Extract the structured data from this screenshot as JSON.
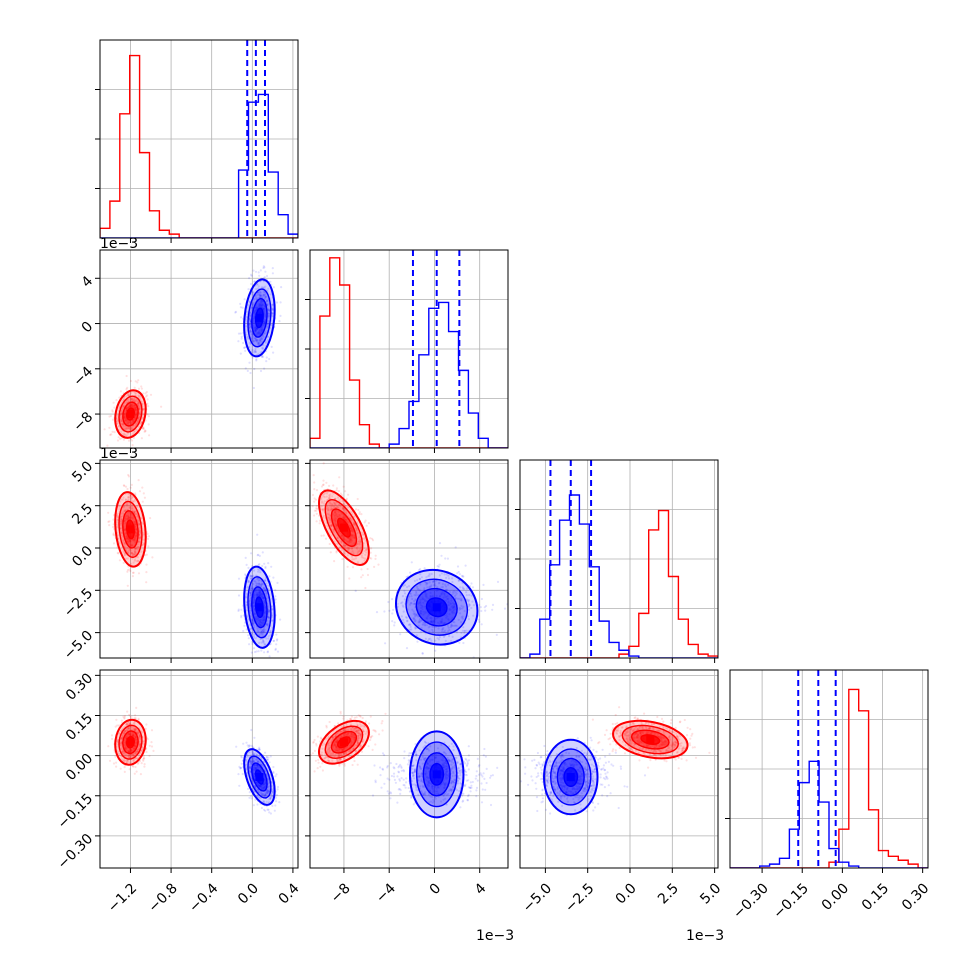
{
  "chart_data": {
    "type": "corner",
    "colors": {
      "series_a": "#ff0000",
      "series_b": "#0000ff"
    },
    "grid": true,
    "params": [
      {
        "tick_labels": [
          "−1.2",
          "−0.8",
          "−0.4",
          "0.0",
          "0.4"
        ],
        "ticks": [
          -1.2,
          -0.8,
          -0.4,
          0.0,
          0.4
        ],
        "range": [
          -1.5,
          0.45
        ],
        "offset_label": ""
      },
      {
        "tick_labels": [
          "−8",
          "−4",
          "0",
          "4"
        ],
        "ticks": [
          -8,
          -4,
          0,
          4
        ],
        "range": [
          -11.0,
          6.5
        ],
        "offset_label": "1e−3"
      },
      {
        "tick_labels": [
          "−5.0",
          "−2.5",
          "0.0",
          "2.5",
          "5.0"
        ],
        "ticks": [
          -5.0,
          -2.5,
          0.0,
          2.5,
          5.0
        ],
        "range": [
          -6.5,
          5.2
        ],
        "offset_label": "1e−3"
      },
      {
        "tick_labels": [
          "−0.30",
          "−0.15",
          "0.00",
          "0.15",
          "0.30"
        ],
        "ticks": [
          -0.3,
          -0.15,
          0.0,
          0.15,
          0.3
        ],
        "range": [
          -0.42,
          0.32
        ],
        "offset_label": ""
      }
    ],
    "histograms": [
      {
        "series_a": {
          "edges_start": -1.5,
          "bin_width": 0.0975,
          "counts": [
            0.05,
            0.19,
            0.64,
            0.94,
            0.44,
            0.14,
            0.04,
            0.02,
            0.0,
            0.0,
            0.0,
            0.0,
            0.0,
            0.0,
            0.0,
            0.0,
            0.0,
            0.0,
            0.0,
            0.0
          ]
        },
        "series_b": {
          "edges_start": -1.5,
          "bin_width": 0.0975,
          "counts": [
            0.0,
            0.0,
            0.0,
            0.0,
            0.0,
            0.0,
            0.0,
            0.0,
            0.0,
            0.0,
            0.0,
            0.0,
            0.0,
            0.0,
            0.35,
            0.7,
            0.74,
            0.34,
            0.12,
            0.02
          ]
        },
        "quantiles_b": [
          -0.05,
          0.035,
          0.125
        ]
      },
      {
        "series_a": {
          "edges_start": -11.0,
          "bin_width": 0.875,
          "counts": [
            0.05,
            0.68,
            0.98,
            0.84,
            0.35,
            0.12,
            0.02,
            0.0,
            0.0,
            0.0,
            0.0,
            0.0,
            0.0,
            0.0,
            0.0,
            0.0,
            0.0,
            0.0,
            0.0,
            0.0
          ]
        },
        "series_b": {
          "edges_start": -11.0,
          "bin_width": 0.875,
          "counts": [
            0.0,
            0.0,
            0.0,
            0.0,
            0.0,
            0.0,
            0.0,
            0.0,
            0.02,
            0.1,
            0.24,
            0.48,
            0.72,
            0.75,
            0.6,
            0.4,
            0.18,
            0.05,
            0.0,
            0.0
          ]
        },
        "quantiles_b": [
          -1.9,
          0.2,
          2.2
        ]
      },
      {
        "series_a": {
          "edges_start": -6.5,
          "bin_width": 0.585,
          "counts": [
            0.0,
            0.0,
            0.0,
            0.0,
            0.0,
            0.0,
            0.0,
            0.0,
            0.0,
            0.0,
            0.02,
            0.06,
            0.23,
            0.66,
            0.76,
            0.42,
            0.2,
            0.07,
            0.02,
            0.01
          ]
        },
        "series_b": {
          "edges_start": -6.5,
          "bin_width": 0.585,
          "counts": [
            0.0,
            0.02,
            0.2,
            0.48,
            0.71,
            0.84,
            0.69,
            0.47,
            0.19,
            0.08,
            0.04,
            0.01,
            0.0,
            0.0,
            0.0,
            0.0,
            0.0,
            0.0,
            0.0,
            0.0
          ]
        },
        "quantiles_b": [
          -4.7,
          -3.5,
          -2.3
        ]
      },
      {
        "series_a": {
          "edges_start": -0.42,
          "bin_width": 0.037,
          "counts": [
            0.0,
            0.0,
            0.0,
            0.0,
            0.0,
            0.0,
            0.0,
            0.0,
            0.0,
            0.0,
            0.03,
            0.2,
            0.92,
            0.81,
            0.3,
            0.09,
            0.06,
            0.04,
            0.02,
            0.0
          ]
        },
        "series_b": {
          "edges_start": -0.42,
          "bin_width": 0.037,
          "counts": [
            0.0,
            0.0,
            0.0,
            0.01,
            0.02,
            0.05,
            0.2,
            0.44,
            0.55,
            0.34,
            0.1,
            0.03,
            0.01,
            0.0,
            0.0,
            0.0,
            0.0,
            0.0,
            0.0,
            0.0
          ]
        },
        "quantiles_b": [
          -0.165,
          -0.09,
          -0.025
        ]
      }
    ],
    "pairs": [
      {
        "x": 0,
        "y": 1,
        "series_a": {
          "mean": [
            -1.2,
            -8.0
          ],
          "sd": [
            0.075,
            1.05
          ],
          "rho": 0.2
        },
        "series_b": {
          "mean": [
            0.07,
            0.5
          ],
          "sd": [
            0.075,
            1.7
          ],
          "rho": 0.2
        }
      },
      {
        "x": 0,
        "y": 2,
        "series_a": {
          "mean": [
            -1.2,
            1.1
          ],
          "sd": [
            0.075,
            1.1
          ],
          "rho": -0.2
        },
        "series_b": {
          "mean": [
            0.07,
            -3.5
          ],
          "sd": [
            0.075,
            1.2
          ],
          "rho": -0.2
        }
      },
      {
        "x": 1,
        "y": 2,
        "series_a": {
          "mean": [
            -8.0,
            1.2
          ],
          "sd": [
            1.1,
            1.1
          ],
          "rho": -0.65
        },
        "series_b": {
          "mean": [
            0.2,
            -3.5
          ],
          "sd": [
            1.8,
            1.1
          ],
          "rho": -0.1
        }
      },
      {
        "x": 0,
        "y": 3,
        "series_a": {
          "mean": [
            -1.2,
            0.05
          ],
          "sd": [
            0.075,
            0.042
          ],
          "rho": 0.1
        },
        "series_b": {
          "mean": [
            0.07,
            -0.08
          ],
          "sd": [
            0.075,
            0.052
          ],
          "rho": -0.5
        }
      },
      {
        "x": 1,
        "y": 3,
        "series_a": {
          "mean": [
            -8.0,
            0.05
          ],
          "sd": [
            1.1,
            0.04
          ],
          "rho": 0.45
        },
        "series_b": {
          "mean": [
            0.2,
            -0.07
          ],
          "sd": [
            1.9,
            0.05
          ],
          "rho": 0.0
        }
      },
      {
        "x": 2,
        "y": 3,
        "series_a": {
          "mean": [
            1.2,
            0.06
          ],
          "sd": [
            1.1,
            0.035
          ],
          "rho": -0.3
        },
        "series_b": {
          "mean": [
            -3.5,
            -0.08
          ],
          "sd": [
            1.1,
            0.05
          ],
          "rho": 0.0
        }
      }
    ]
  }
}
